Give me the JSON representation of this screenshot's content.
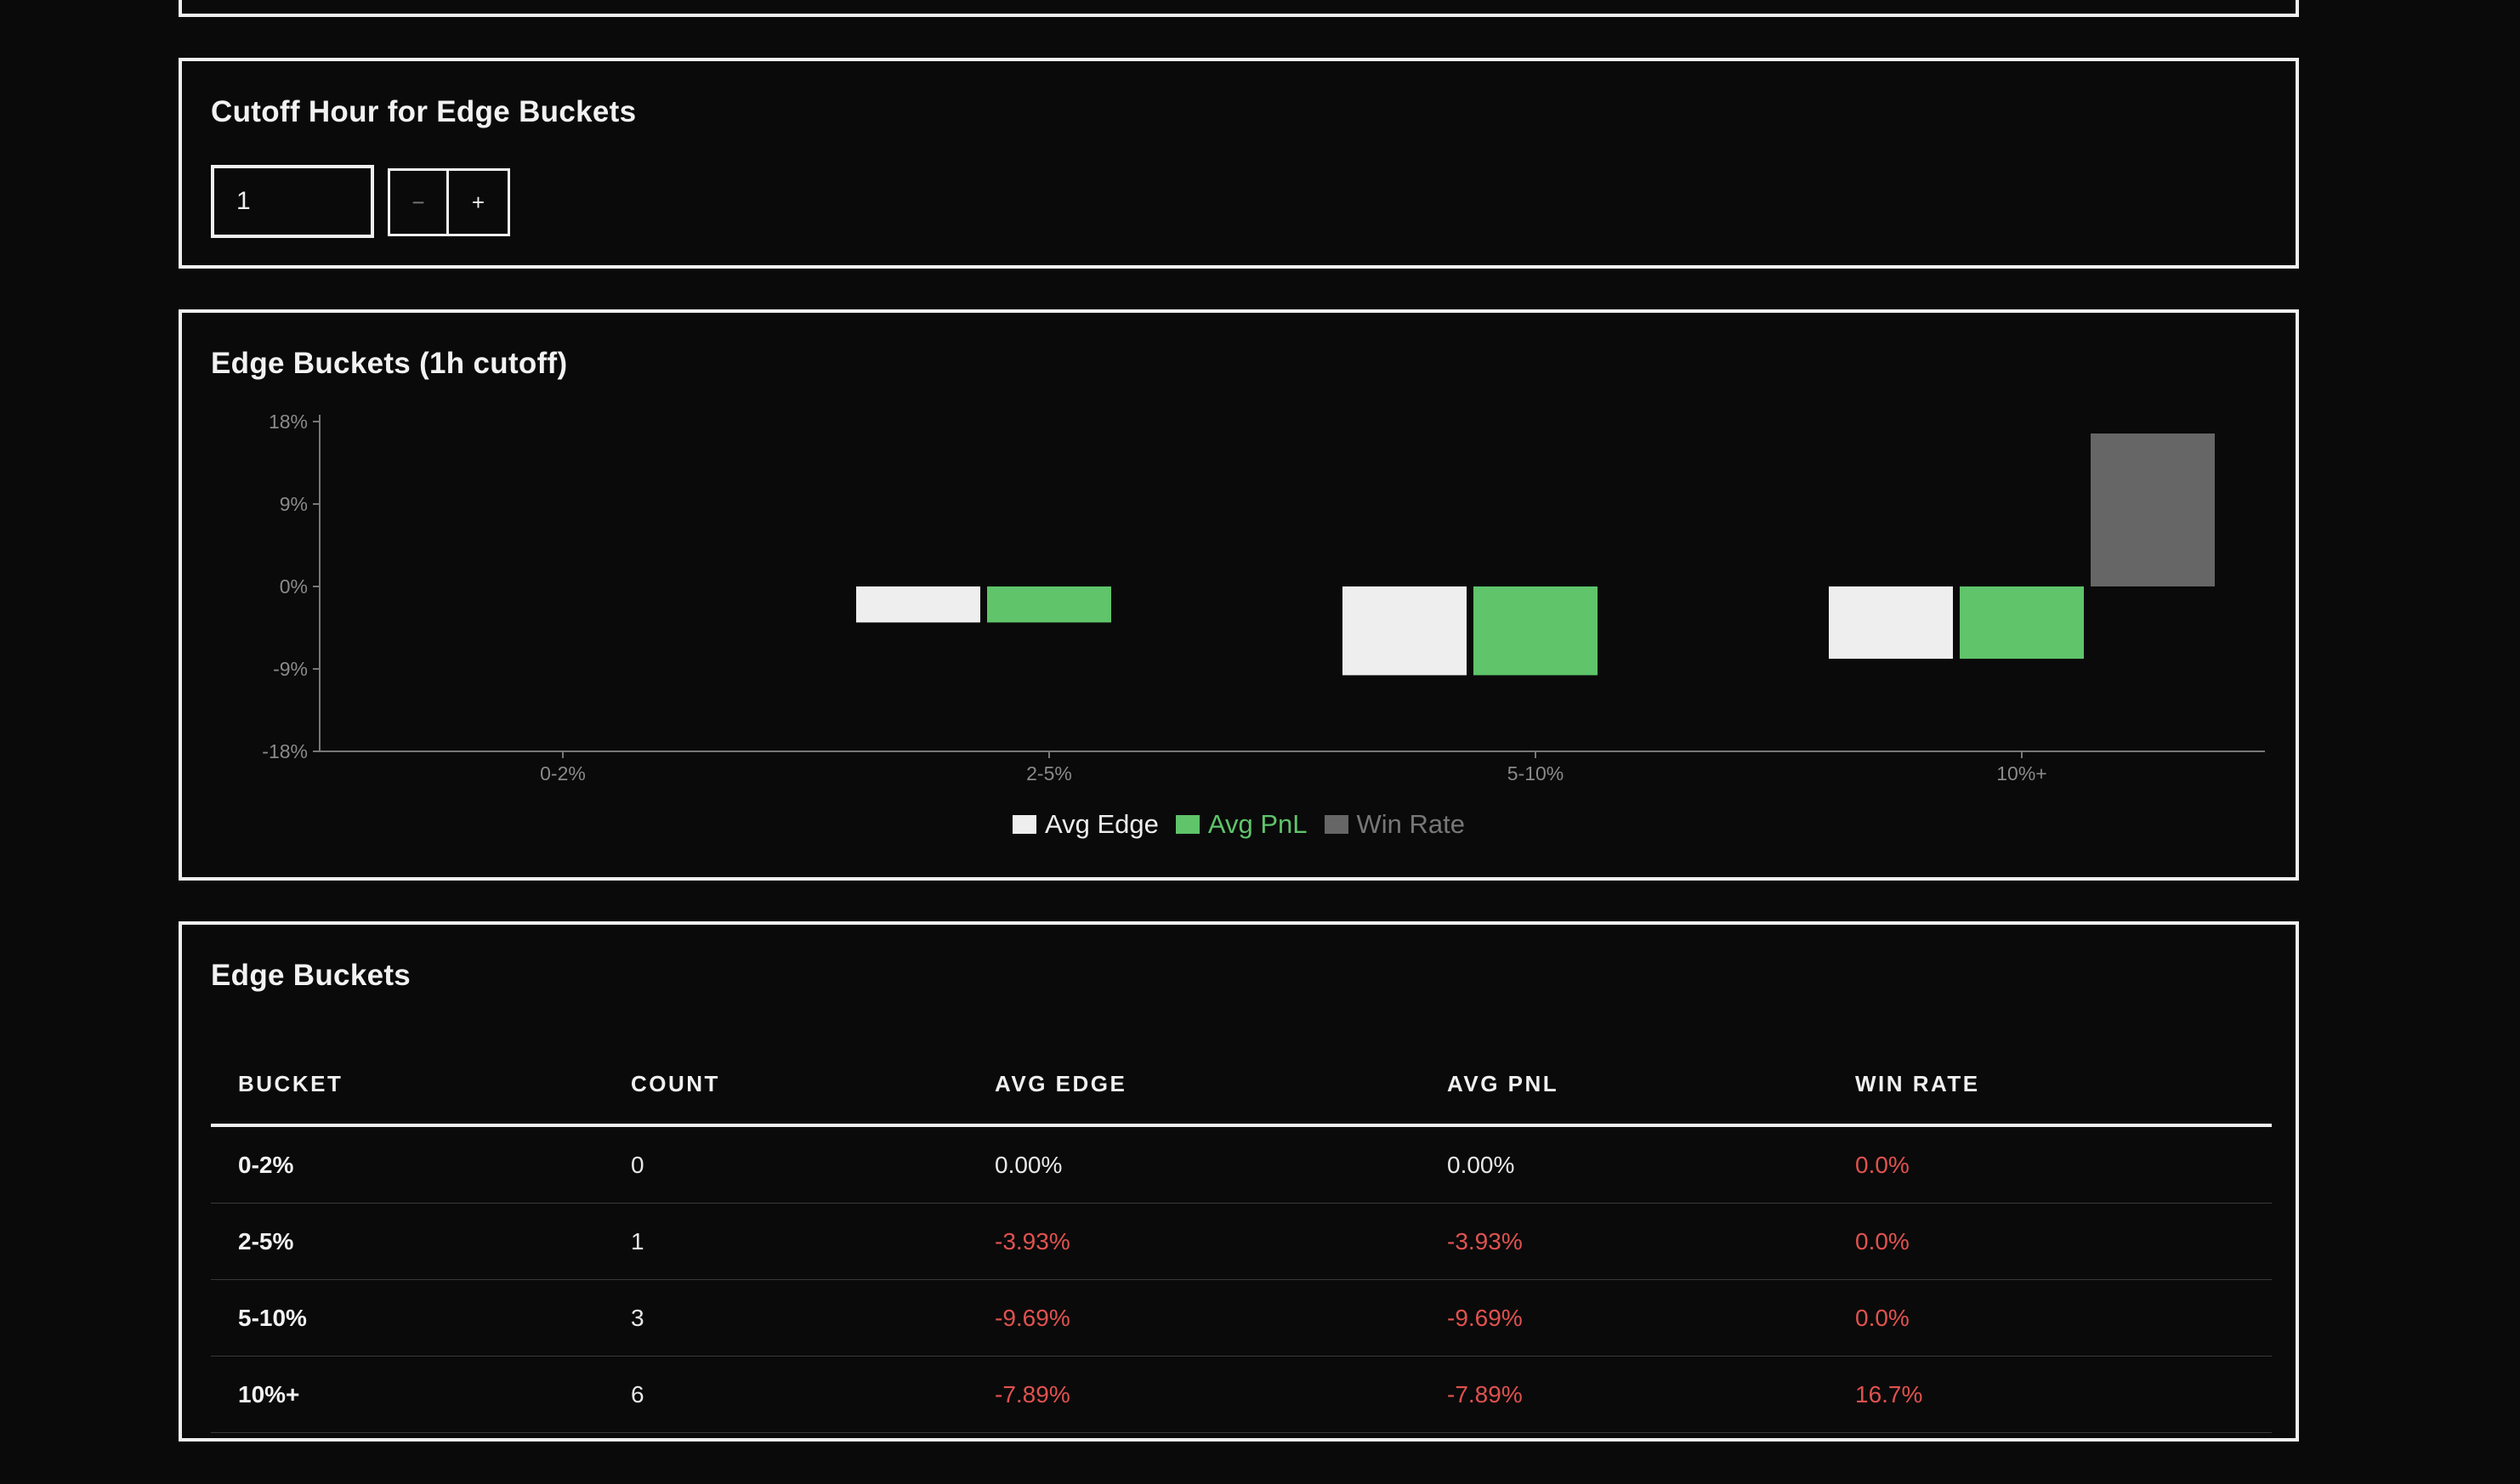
{
  "cutoff": {
    "title": "Cutoff Hour for Edge Buckets",
    "value": "1",
    "minus_label": "−",
    "plus_label": "+"
  },
  "chart": {
    "title": "Edge Buckets (1h cutoff)",
    "legend": [
      {
        "label": "Avg Edge",
        "color": "#eeeeee"
      },
      {
        "label": "Avg PnL",
        "color": "#5fc46a"
      },
      {
        "label": "Win Rate",
        "color": "#666666"
      }
    ]
  },
  "chart_data": {
    "type": "bar",
    "categories": [
      "0-2%",
      "2-5%",
      "5-10%",
      "10%+"
    ],
    "series": [
      {
        "name": "Avg Edge",
        "color": "#eeeeee",
        "values": [
          0,
          -3.93,
          -9.69,
          -7.89
        ]
      },
      {
        "name": "Avg PnL",
        "color": "#5fc46a",
        "values": [
          0,
          -3.93,
          -9.69,
          -7.89
        ]
      },
      {
        "name": "Win Rate",
        "color": "#666666",
        "values": [
          0,
          0,
          0,
          16.7
        ]
      }
    ],
    "yticks": [
      "18%",
      "9%",
      "0%",
      "-9%",
      "-18%"
    ],
    "ytick_values": [
      18,
      9,
      0,
      -9,
      -18
    ],
    "ylim": [
      -18,
      18
    ],
    "legend_position": "bottom",
    "grid": false
  },
  "table": {
    "title": "Edge Buckets",
    "headers": [
      "BUCKET",
      "COUNT",
      "AVG EDGE",
      "AVG PNL",
      "WIN RATE"
    ],
    "rows": [
      {
        "bucket": "0-2%",
        "count": "0",
        "avg_edge": "0.00%",
        "avg_pnl": "0.00%",
        "win_rate": "0.0%"
      },
      {
        "bucket": "2-5%",
        "count": "1",
        "avg_edge": "-3.93%",
        "avg_pnl": "-3.93%",
        "win_rate": "0.0%"
      },
      {
        "bucket": "5-10%",
        "count": "3",
        "avg_edge": "-9.69%",
        "avg_pnl": "-9.69%",
        "win_rate": "0.0%"
      },
      {
        "bucket": "10%+",
        "count": "6",
        "avg_edge": "-7.89%",
        "avg_pnl": "-7.89%",
        "win_rate": "16.7%"
      }
    ]
  }
}
